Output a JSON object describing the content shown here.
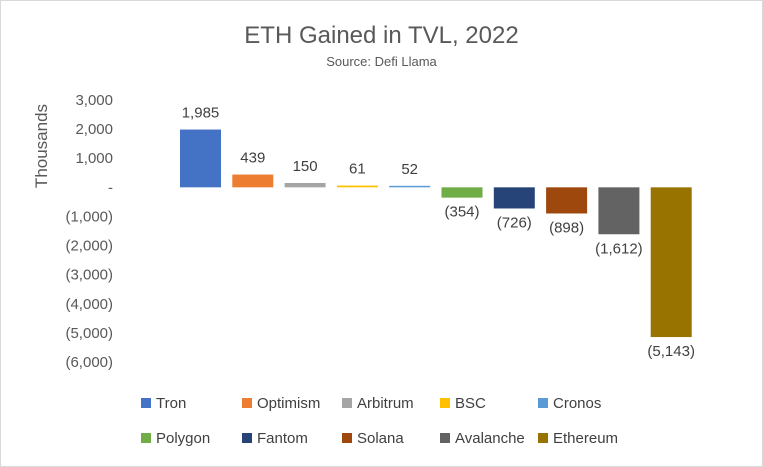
{
  "chart_data": {
    "type": "bar",
    "title": "ETH Gained in TVL, 2022",
    "subtitle": "Source: Defi Llama",
    "ylabel": "Thousands",
    "xlabel": "",
    "ylim": [
      -6000,
      3000
    ],
    "yticks": [
      3000,
      2000,
      1000,
      0,
      -1000,
      -2000,
      -3000,
      -4000,
      -5000,
      -6000
    ],
    "ytick_labels": [
      "3,000",
      "2,000",
      "1,000",
      "-",
      "(1,000)",
      "(2,000)",
      "(3,000)",
      "(4,000)",
      "(5,000)",
      "(6,000)"
    ],
    "grid": false,
    "legend_position": "bottom",
    "series": [
      {
        "name": "Tron",
        "value": 1985,
        "label": "1,985",
        "color": "#4472C4"
      },
      {
        "name": "Optimism",
        "value": 439,
        "label": "439",
        "color": "#ED7D31"
      },
      {
        "name": "Arbitrum",
        "value": 150,
        "label": "150",
        "color": "#A5A5A5"
      },
      {
        "name": "BSC",
        "value": 61,
        "label": "61",
        "color": "#FFC000"
      },
      {
        "name": "Cronos",
        "value": 52,
        "label": "52",
        "color": "#5B9BD5"
      },
      {
        "name": "Polygon",
        "value": -354,
        "label": "(354)",
        "color": "#70AD47"
      },
      {
        "name": "Fantom",
        "value": -726,
        "label": "(726)",
        "color": "#264478"
      },
      {
        "name": "Solana",
        "value": -898,
        "label": "(898)",
        "color": "#9E480E"
      },
      {
        "name": "Avalanche",
        "value": -1612,
        "label": "(1,612)",
        "color": "#636363"
      },
      {
        "name": "Ethereum",
        "value": -5143,
        "label": "(5,143)",
        "color": "#997300"
      }
    ]
  }
}
